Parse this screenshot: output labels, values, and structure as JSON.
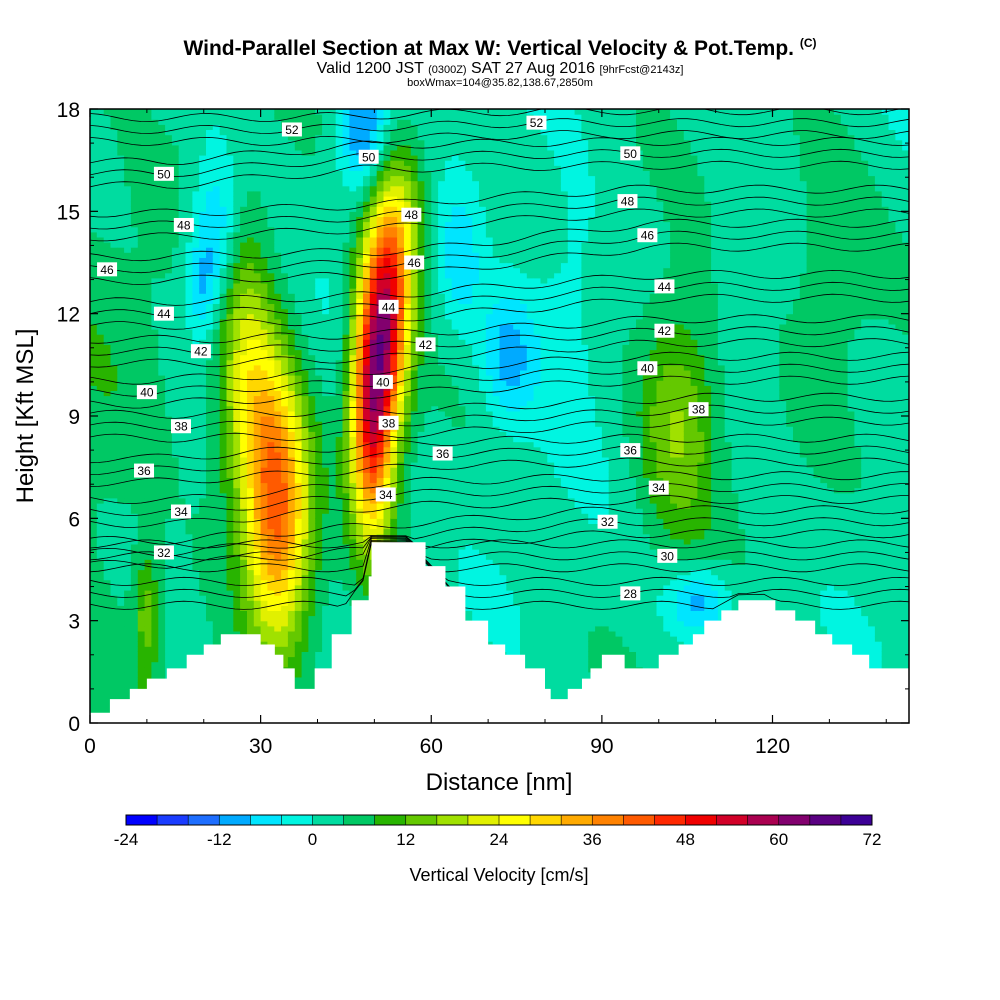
{
  "chart_data": {
    "type": "heatmap",
    "title": "Wind-Parallel Section at Max W: Vertical Velocity & Pot.Temp.",
    "title_mark": "(C)",
    "subtitle_parts": [
      "Valid 1200 JST ",
      "(0300Z)",
      " SAT 27 Aug 2016 ",
      "[9hrFcst@2143z]"
    ],
    "subtitle2": "boxWmax=104@35.82,138.67,2850m",
    "xlabel": "Distance [nm]",
    "ylabel": "Height [Kft MSL]",
    "xlim": [
      0,
      144
    ],
    "ylim": [
      0,
      18
    ],
    "xticks": [
      0,
      30,
      60,
      90,
      120
    ],
    "yticks": [
      0,
      3,
      6,
      9,
      12,
      15,
      18
    ],
    "colorbar": {
      "label": "Vertical Velocity [cm/s]",
      "min": -24,
      "max": 72,
      "step": 4,
      "tick_values": [
        -24,
        -12,
        0,
        12,
        24,
        36,
        48,
        60,
        72
      ],
      "colors": [
        "#0000ff",
        "#1a3cff",
        "#1e6eff",
        "#00aaff",
        "#00e5ff",
        "#00f5e1",
        "#00dca0",
        "#00c864",
        "#28b400",
        "#64c800",
        "#a0e100",
        "#e1f000",
        "#ffff00",
        "#ffd700",
        "#ffaa00",
        "#ff8200",
        "#ff5a00",
        "#ff2800",
        "#f00000",
        "#d20028",
        "#aa0050",
        "#82006e",
        "#5a0082",
        "#3c0096"
      ]
    },
    "theta_contours": {
      "labels": [
        {
          "text": "52",
          "x": 35.5,
          "y": 17.4
        },
        {
          "text": "52",
          "x": 78.5,
          "y": 17.6
        },
        {
          "text": "50",
          "x": 13,
          "y": 16.1
        },
        {
          "text": "50",
          "x": 49,
          "y": 16.6
        },
        {
          "text": "50",
          "x": 95,
          "y": 16.7
        },
        {
          "text": "48",
          "x": 16.5,
          "y": 14.6
        },
        {
          "text": "48",
          "x": 56.5,
          "y": 14.9
        },
        {
          "text": "48",
          "x": 94.5,
          "y": 15.3
        },
        {
          "text": "46",
          "x": 3,
          "y": 13.3
        },
        {
          "text": "46",
          "x": 57,
          "y": 13.5
        },
        {
          "text": "46",
          "x": 98,
          "y": 14.3
        },
        {
          "text": "44",
          "x": 13,
          "y": 12.0
        },
        {
          "text": "44",
          "x": 52.5,
          "y": 12.2
        },
        {
          "text": "44",
          "x": 101,
          "y": 12.8
        },
        {
          "text": "42",
          "x": 19.5,
          "y": 10.9
        },
        {
          "text": "42",
          "x": 59,
          "y": 11.1
        },
        {
          "text": "42",
          "x": 101,
          "y": 11.5
        },
        {
          "text": "40",
          "x": 10,
          "y": 9.7
        },
        {
          "text": "40",
          "x": 51.5,
          "y": 10.0
        },
        {
          "text": "40",
          "x": 98,
          "y": 10.4
        },
        {
          "text": "38",
          "x": 16,
          "y": 8.7
        },
        {
          "text": "38",
          "x": 52.5,
          "y": 8.8
        },
        {
          "text": "38",
          "x": 107,
          "y": 9.2
        },
        {
          "text": "36",
          "x": 9.5,
          "y": 7.4
        },
        {
          "text": "36",
          "x": 62,
          "y": 7.9
        },
        {
          "text": "36",
          "x": 95,
          "y": 8.0
        },
        {
          "text": "34",
          "x": 16,
          "y": 6.2
        },
        {
          "text": "34",
          "x": 52,
          "y": 6.7
        },
        {
          "text": "34",
          "x": 100,
          "y": 6.9
        },
        {
          "text": "32",
          "x": 13,
          "y": 5.0
        },
        {
          "text": "32",
          "x": 91,
          "y": 5.9
        },
        {
          "text": "30",
          "x": 101.5,
          "y": 4.9
        },
        {
          "text": "28",
          "x": 95,
          "y": 3.8
        }
      ]
    },
    "vertical_velocity_cells": [
      {
        "x": 33,
        "y": 6.2,
        "amplitude": 38,
        "sx": 4,
        "sy": 2.6
      },
      {
        "x": 28.5,
        "y": 9.3,
        "amplitude": 18,
        "sx": 4.2,
        "sy": 2.2
      },
      {
        "x": 27,
        "y": 12.5,
        "amplitude": 8,
        "sx": 3.2,
        "sy": 2.2
      },
      {
        "x": 49.5,
        "y": 9.2,
        "amplitude": 48,
        "sx": 2.6,
        "sy": 2.6
      },
      {
        "x": 52.5,
        "y": 12.2,
        "amplitude": 42,
        "sx": 2.8,
        "sy": 2.3
      },
      {
        "x": 55.5,
        "y": 15,
        "amplitude": 12,
        "sx": 3.2,
        "sy": 1.6
      },
      {
        "x": 10,
        "y": 3.2,
        "amplitude": 11,
        "sx": 1.6,
        "sy": 1.3
      },
      {
        "x": 103.5,
        "y": 9,
        "amplitude": 15,
        "sx": 5,
        "sy": 2.5
      },
      {
        "x": 130,
        "y": 14,
        "amplitude": 6,
        "sx": 6,
        "sy": 2.5
      },
      {
        "x": 22,
        "y": 14.3,
        "amplitude": -13,
        "sx": 3,
        "sy": 1.6
      },
      {
        "x": 19.5,
        "y": 12.7,
        "amplitude": -8,
        "sx": 2,
        "sy": 1
      },
      {
        "x": 73.5,
        "y": 10.7,
        "amplitude": -12,
        "sx": 3.5,
        "sy": 1.4
      },
      {
        "x": 65,
        "y": 13.5,
        "amplitude": -8,
        "sx": 2.5,
        "sy": 1.5
      },
      {
        "x": 48,
        "y": 17.3,
        "amplitude": -15,
        "sx": 3,
        "sy": 1.3
      },
      {
        "x": 107,
        "y": 3.6,
        "amplitude": -13,
        "sx": 4,
        "sy": 0.7
      },
      {
        "x": 84,
        "y": 12.5,
        "amplitude": -5,
        "sx": 5,
        "sy": 2.5
      },
      {
        "x": 0,
        "y": 6,
        "amplitude": 4,
        "sx": 12,
        "sy": 12
      }
    ],
    "terrain": [
      [
        0,
        0.3
      ],
      [
        3.5,
        0.7
      ],
      [
        7,
        1.0
      ],
      [
        10,
        1.3
      ],
      [
        13.5,
        1.6
      ],
      [
        17,
        2.0
      ],
      [
        20,
        2.3
      ],
      [
        23,
        2.6
      ],
      [
        26,
        2.6
      ],
      [
        29.5,
        2.6
      ],
      [
        30,
        2.3
      ],
      [
        32.5,
        2.0
      ],
      [
        34,
        1.6
      ],
      [
        36,
        1.0
      ],
      [
        39.5,
        1.6
      ],
      [
        42.5,
        2.6
      ],
      [
        46,
        3.6
      ],
      [
        49,
        4.3
      ],
      [
        49.5,
        5.3
      ],
      [
        56,
        5.3
      ],
      [
        59,
        4.6
      ],
      [
        62.5,
        4.0
      ],
      [
        66,
        3.0
      ],
      [
        70,
        2.3
      ],
      [
        73,
        2.0
      ],
      [
        76.5,
        1.6
      ],
      [
        80,
        1.0
      ],
      [
        81,
        0.7
      ],
      [
        84,
        1.0
      ],
      [
        86.5,
        1.3
      ],
      [
        88,
        1.6
      ],
      [
        90,
        2.0
      ],
      [
        94,
        1.6
      ],
      [
        100,
        2.0
      ],
      [
        103.5,
        2.3
      ],
      [
        106,
        2.6
      ],
      [
        108,
        3.0
      ],
      [
        111,
        3.3
      ],
      [
        114,
        3.6
      ],
      [
        119.5,
        3.6
      ],
      [
        120.5,
        3.3
      ],
      [
        124,
        3.0
      ],
      [
        127.5,
        2.6
      ],
      [
        130.5,
        2.3
      ],
      [
        134,
        2.0
      ],
      [
        137,
        1.6
      ],
      [
        144,
        1.6
      ]
    ]
  }
}
